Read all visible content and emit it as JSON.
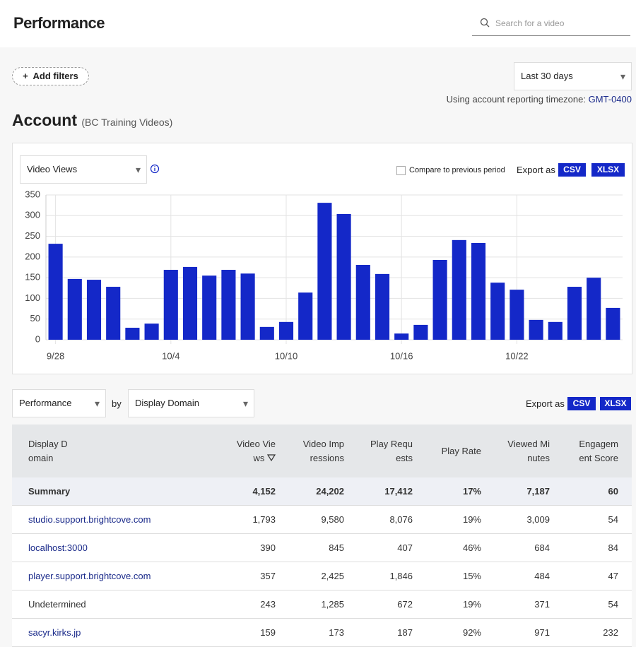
{
  "header": {
    "title": "Performance",
    "search_placeholder": "Search for a video"
  },
  "filters": {
    "add_filters": "Add filters",
    "date_range": "Last 30 days",
    "timezone_text": "Using account reporting timezone:",
    "timezone": "GMT-0400"
  },
  "account": {
    "title": "Account",
    "subtitle": "(BC Training Videos)"
  },
  "chart_controls": {
    "metric": "Video Views",
    "compare": "Compare to previous period",
    "export_label": "Export as",
    "csv": "CSV",
    "xlsx": "XLSX"
  },
  "chart_data": {
    "type": "bar",
    "categories": [
      "9/28",
      null,
      null,
      null,
      null,
      null,
      "10/4",
      null,
      null,
      null,
      null,
      null,
      "10/10",
      null,
      null,
      null,
      null,
      null,
      "10/16",
      null,
      null,
      null,
      null,
      null,
      "10/22",
      null,
      null,
      null,
      null,
      null
    ],
    "values": [
      232,
      147,
      145,
      128,
      29,
      39,
      169,
      176,
      155,
      169,
      160,
      31,
      43,
      114,
      331,
      304,
      181,
      159,
      15,
      36,
      193,
      241,
      234,
      138,
      121,
      48,
      43,
      128,
      150,
      77
    ],
    "color": "#1428c8",
    "ylim": [
      0,
      350
    ],
    "yticks": [
      0,
      50,
      100,
      150,
      200,
      250,
      300,
      350
    ],
    "grid": true
  },
  "table_controls": {
    "metric": "Performance",
    "by": "by",
    "dimension": "Display Domain",
    "export_label": "Export as",
    "csv": "CSV",
    "xlsx": "XLSX"
  },
  "table": {
    "columns": [
      "Display Domain",
      "Video Views",
      "Video Impressions",
      "Play Requests",
      "Play Rate",
      "Viewed Minutes",
      "Engagement Score"
    ],
    "summary": [
      "Summary",
      "4,152",
      "24,202",
      "17,412",
      "17%",
      "7,187",
      "60"
    ],
    "rows": [
      [
        "studio.support.brightcove.com",
        "1,793",
        "9,580",
        "8,076",
        "19%",
        "3,009",
        "54"
      ],
      [
        "localhost:3000",
        "390",
        "845",
        "407",
        "46%",
        "684",
        "84"
      ],
      [
        "player.support.brightcove.com",
        "357",
        "2,425",
        "1,846",
        "15%",
        "484",
        "47"
      ],
      [
        "Undetermined",
        "243",
        "1,285",
        "672",
        "19%",
        "371",
        "54"
      ],
      [
        "sacyr.kirks.jp",
        "159",
        "173",
        "187",
        "92%",
        "971",
        "232"
      ]
    ]
  }
}
